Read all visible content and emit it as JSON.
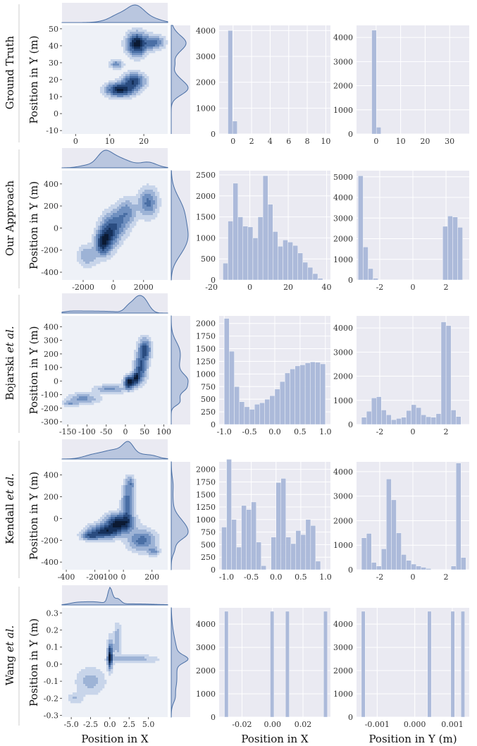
{
  "figure": {
    "x_axis_label": "Position in X",
    "y_axis_label": "Position in Y (m)",
    "hist_x_label": "Position in X",
    "hist_y_label": "Position in Y (m)"
  },
  "colors": {
    "panel_bg": "#eaeaf2",
    "kde_inner_bg": "#eef1f7",
    "bar": "#a9b8d9",
    "kde_dark": "#0b1a33",
    "kde_mid": "#4a6fa5",
    "kde_light": "#c3d0e6",
    "grid": "#ffffff"
  },
  "chart_data": [
    {
      "type": "heatmap",
      "row": "Ground Truth",
      "row_label": [
        "Ground Truth",
        ""
      ],
      "xlabel": "",
      "ylabel": "Position in Y (m)",
      "xlim": [
        -4,
        27
      ],
      "ylim": [
        -12,
        52
      ],
      "xticks": [
        0,
        10,
        20
      ],
      "yticks": [
        -10,
        0,
        10,
        20,
        30,
        40,
        50
      ],
      "clusters": [
        {
          "x": 18,
          "y": 41,
          "sx": 1.8,
          "sy": 4,
          "w": 1.0
        },
        {
          "x": 23,
          "y": 42,
          "sx": 1.8,
          "sy": 2.5,
          "w": 0.5
        },
        {
          "x": 13,
          "y": 14,
          "sx": 2.5,
          "sy": 2.5,
          "w": 0.9
        },
        {
          "x": 17,
          "y": 19,
          "sx": 2,
          "sy": 3,
          "w": 0.7
        },
        {
          "x": 12,
          "y": 29,
          "sx": 1.2,
          "sy": 1.6,
          "w": 0.35
        }
      ],
      "hist_x": {
        "type": "bar",
        "xlim": [
          -1.5,
          10.5
        ],
        "xticks": [
          0,
          2,
          4,
          6,
          8,
          10
        ],
        "ylim": [
          0,
          4200
        ],
        "yticks": [
          0,
          1000,
          2000,
          3000,
          4000
        ],
        "bin_start": -0.55,
        "bin_width": 0.5,
        "values": [
          4000,
          500
        ]
      },
      "hist_y": {
        "type": "bar",
        "xlim": [
          -8,
          38
        ],
        "xticks": [
          0,
          10,
          20,
          30
        ],
        "ylim": [
          0,
          4500
        ],
        "yticks": [
          0,
          1000,
          2000,
          3000,
          4000
        ],
        "bin_start": -1.8,
        "bin_width": 1.9,
        "values": [
          4300,
          280
        ]
      }
    },
    {
      "type": "heatmap",
      "row": "Our Approach",
      "row_label": [
        "Our Approach",
        ""
      ],
      "xlabel": "",
      "ylabel": "Position in Y (m)",
      "xlim": [
        -3400,
        3600
      ],
      "ylim": [
        -470,
        520
      ],
      "xticks": [
        -2000,
        0,
        2000
      ],
      "yticks": [
        -400,
        -200,
        0,
        200,
        400
      ],
      "clusters": [
        {
          "x": -700,
          "y": -140,
          "sx": 300,
          "sy": 70,
          "w": 1.0
        },
        {
          "x": -300,
          "y": -60,
          "sx": 400,
          "sy": 80,
          "w": 0.8
        },
        {
          "x": 200,
          "y": 40,
          "sx": 500,
          "sy": 80,
          "w": 0.55
        },
        {
          "x": 900,
          "y": 150,
          "sx": 400,
          "sy": 70,
          "w": 0.45
        },
        {
          "x": 2300,
          "y": 230,
          "sx": 400,
          "sy": 80,
          "w": 0.6
        },
        {
          "x": -1700,
          "y": -250,
          "sx": 400,
          "sy": 60,
          "w": 0.35
        }
      ],
      "hist_x": {
        "type": "bar",
        "xlim": [
          -16,
          42
        ],
        "xticks": [
          -20,
          0,
          20,
          40
        ],
        "ylim": [
          0,
          2600
        ],
        "yticks": [
          0,
          500,
          1000,
          1500,
          2000,
          2500
        ],
        "bin_start": -14,
        "bin_width": 2.6,
        "values": [
          400,
          1400,
          2300,
          1500,
          1280,
          1260,
          1000,
          1500,
          2480,
          1800,
          1150,
          800,
          950,
          900,
          820,
          640,
          420,
          300,
          150,
          40
        ]
      },
      "hist_y": {
        "type": "bar",
        "xlim": [
          -3.4,
          3.4
        ],
        "xticks": [
          -2,
          0,
          2
        ],
        "ylim": [
          0,
          5300
        ],
        "yticks": [
          0,
          1000,
          2000,
          3000,
          4000,
          5000
        ],
        "bin_start": -3.3,
        "bin_width": 0.3,
        "values": [
          5050,
          1600,
          550,
          80,
          0,
          0,
          0,
          0,
          0,
          0,
          0,
          0,
          0,
          0,
          0,
          0,
          0,
          2600,
          3100,
          3050,
          2550
        ]
      }
    },
    {
      "type": "heatmap",
      "row": "Bojarski et al.",
      "row_label": [
        "Bojarski ",
        "et al."
      ],
      "xlabel": "",
      "ylabel": "Position in Y (m)",
      "xlim": [
        -165,
        110
      ],
      "ylim": [
        -320,
        480
      ],
      "xticks": [
        -150,
        -100,
        -50,
        0,
        50,
        100
      ],
      "yticks": [
        -300,
        -200,
        -100,
        0,
        100,
        200,
        300,
        400
      ],
      "clusters": [
        {
          "x": 10,
          "y": -10,
          "sx": 8,
          "sy": 30,
          "w": 1.0
        },
        {
          "x": 28,
          "y": 20,
          "sx": 7,
          "sy": 30,
          "w": 0.8
        },
        {
          "x": 40,
          "y": 100,
          "sx": 10,
          "sy": 60,
          "w": 0.6
        },
        {
          "x": 50,
          "y": 230,
          "sx": 10,
          "sy": 50,
          "w": 0.65
        },
        {
          "x": -40,
          "y": -60,
          "sx": 25,
          "sy": 20,
          "w": 0.3
        },
        {
          "x": -110,
          "y": -130,
          "sx": 25,
          "sy": 25,
          "w": 0.3
        },
        {
          "x": -145,
          "y": -165,
          "sx": 12,
          "sy": 14,
          "w": 0.25
        }
      ],
      "hist_x": {
        "type": "bar",
        "xlim": [
          -1.1,
          1.1
        ],
        "xticks": [
          -1.0,
          -0.5,
          0.0,
          0.5,
          1.0
        ],
        "ylim": [
          0,
          2150
        ],
        "yticks": [
          0,
          250,
          500,
          750,
          1000,
          1250,
          1500,
          1750,
          2000
        ],
        "bin_start": -1.0,
        "bin_width": 0.1,
        "values": [
          2100,
          1450,
          750,
          450,
          350,
          300,
          400,
          430,
          500,
          570,
          700,
          850,
          1020,
          1100,
          1160,
          1180,
          1220,
          1240,
          1230,
          1200
        ]
      },
      "hist_y": {
        "type": "bar",
        "xlim": [
          -3.4,
          3.4
        ],
        "xticks": [
          -2,
          0,
          2
        ],
        "ylim": [
          0,
          4500
        ],
        "yticks": [
          0,
          1000,
          2000,
          3000,
          4000
        ],
        "bin_start": -3.1,
        "bin_width": 0.3,
        "values": [
          300,
          550,
          1100,
          1150,
          600,
          400,
          200,
          250,
          300,
          580,
          820,
          700,
          400,
          320,
          300,
          450,
          4250,
          4100,
          600,
          330
        ]
      }
    },
    {
      "type": "heatmap",
      "row": "Kendall et al.",
      "row_label": [
        "Kendall ",
        "et al."
      ],
      "xlabel": "",
      "ylabel": "Position in Y (m)",
      "xlim": [
        -430,
        310
      ],
      "ylim": [
        -470,
        520
      ],
      "xticks": [
        -400,
        -200,
        -100,
        0,
        200
      ],
      "yticks": [
        -400,
        -200,
        0,
        200,
        400
      ],
      "clusters": [
        {
          "x": -30,
          "y": -40,
          "sx": 60,
          "sy": 50,
          "w": 0.9
        },
        {
          "x": -130,
          "y": -120,
          "sx": 70,
          "sy": 40,
          "w": 0.75
        },
        {
          "x": -230,
          "y": -160,
          "sx": 40,
          "sy": 25,
          "w": 0.45
        },
        {
          "x": 30,
          "y": 120,
          "sx": 25,
          "sy": 120,
          "w": 0.5
        },
        {
          "x": 50,
          "y": 320,
          "sx": 20,
          "sy": 40,
          "w": 0.3
        },
        {
          "x": 130,
          "y": -200,
          "sx": 60,
          "sy": 60,
          "w": 0.45
        },
        {
          "x": 210,
          "y": -300,
          "sx": 25,
          "sy": 25,
          "w": 0.3
        }
      ],
      "hist_x": {
        "type": "bar",
        "xlim": [
          -1.15,
          1.1
        ],
        "xticks": [
          -1.0,
          -0.5,
          0.0,
          0.5,
          1.0
        ],
        "ylim": [
          0,
          2150
        ],
        "yticks": [
          0,
          250,
          500,
          750,
          1000,
          1250,
          1500,
          1750,
          2000
        ],
        "bin_start": -1.1,
        "bin_width": 0.1,
        "values": [
          850,
          2200,
          1000,
          450,
          1280,
          1200,
          1350,
          550,
          80,
          0,
          650,
          1740,
          1820,
          650,
          520,
          780,
          700,
          1000,
          880,
          170
        ]
      },
      "hist_y": {
        "type": "bar",
        "xlim": [
          -3.4,
          3.4
        ],
        "xticks": [
          -2,
          0,
          2
        ],
        "ylim": [
          0,
          4400
        ],
        "yticks": [
          0,
          1000,
          2000,
          3000,
          4000
        ],
        "bin_start": -3.1,
        "bin_width": 0.3,
        "values": [
          1300,
          1480,
          300,
          150,
          850,
          3700,
          2850,
          1500,
          620,
          380,
          230,
          150,
          100,
          50,
          0,
          0,
          0,
          0,
          150,
          4350,
          500
        ]
      }
    },
    {
      "type": "heatmap",
      "row": "Wang et al.",
      "row_label": [
        "Wang ",
        "et al."
      ],
      "xlabel": "Position in X",
      "ylabel": "Position in Y (m)",
      "xlim": [
        -6.2,
        7.5
      ],
      "ylim": [
        -0.31,
        0.33
      ],
      "xticks": [
        -5.0,
        -2.5,
        0.0,
        2.5,
        5.0
      ],
      "yticks": [
        -0.3,
        -0.2,
        -0.1,
        0.0,
        0.1,
        0.2,
        0.3
      ],
      "clusters": [
        {
          "x": 0,
          "y": 0.03,
          "sx": 0.18,
          "sy": 0.04,
          "w": 1.0
        },
        {
          "x": 0.1,
          "y": 0.08,
          "sx": 0.25,
          "sy": 0.05,
          "w": 0.5
        },
        {
          "x": 1.0,
          "y": 0.14,
          "sx": 0.3,
          "sy": 0.06,
          "w": 0.35
        },
        {
          "x": 3.0,
          "y": 0.03,
          "sx": 2.0,
          "sy": 0.015,
          "w": 0.3
        },
        {
          "x": -2.5,
          "y": -0.1,
          "sx": 1.2,
          "sy": 0.05,
          "w": 0.25
        },
        {
          "x": -4.5,
          "y": -0.2,
          "sx": 0.6,
          "sy": 0.02,
          "w": 0.2
        }
      ],
      "hist_x": {
        "type": "bar",
        "xlabel": "Position in X",
        "xlim": [
          -0.035,
          0.038
        ],
        "xticks": [
          -0.02,
          0.0,
          0.02
        ],
        "ylim": [
          0,
          4700
        ],
        "yticks": [
          0,
          1000,
          2000,
          3000,
          4000
        ],
        "bins": [
          [
            -0.0315,
            0.0025,
            4550
          ],
          [
            -0.0015,
            0.0025,
            4550
          ],
          [
            0.0085,
            0.0025,
            4550
          ],
          [
            0.0335,
            0.0025,
            4550
          ]
        ]
      },
      "hist_y": {
        "type": "bar",
        "xlabel": "Position in Y (m)",
        "xlim": [
          -0.00155,
          0.00145
        ],
        "xticks": [
          -0.001,
          0.0,
          0.001
        ],
        "ylim": [
          0,
          4700
        ],
        "yticks": [
          0,
          1000,
          2000,
          3000,
          4000
        ],
        "bins": [
          [
            -0.00142,
            0.0001,
            4550
          ],
          [
            0.00034,
            0.0001,
            4550
          ],
          [
            0.00096,
            0.0001,
            4550
          ],
          [
            0.00123,
            0.0001,
            4550
          ]
        ]
      }
    }
  ]
}
